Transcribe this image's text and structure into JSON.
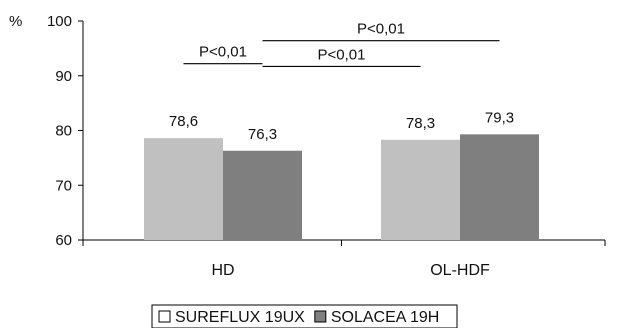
{
  "chart_data": {
    "type": "bar",
    "ylabel": "%",
    "ylim": [
      60,
      100
    ],
    "yticks": [
      60,
      70,
      80,
      90,
      100
    ],
    "categories": [
      "HD",
      "OL-HDF"
    ],
    "series": [
      {
        "name": "SUREFLUX 19UX",
        "values": [
          78.6,
          78.3
        ],
        "labels": [
          "78,6",
          "78,3"
        ],
        "color": "#c0c0c0"
      },
      {
        "name": "SOLACEA 19H",
        "values": [
          76.3,
          79.3
        ],
        "labels": [
          "76,3",
          "79,3"
        ],
        "color": "#7f7f7f"
      }
    ],
    "annotations": [
      {
        "text": "P<0,01",
        "from": {
          "category": 0,
          "series": 0
        },
        "to": {
          "category": 0,
          "series": 1
        },
        "y": 92.2
      },
      {
        "text": "P<0,01",
        "from": {
          "category": 0,
          "series": 1
        },
        "to": {
          "category": 1,
          "series": 0
        },
        "y": 91.7
      },
      {
        "text": "P<0,01",
        "from": {
          "category": 0,
          "series": 1
        },
        "to": {
          "category": 1,
          "series": 1
        },
        "y": 96.4
      }
    ],
    "legend": {
      "position": "bottom"
    },
    "grid": false
  }
}
